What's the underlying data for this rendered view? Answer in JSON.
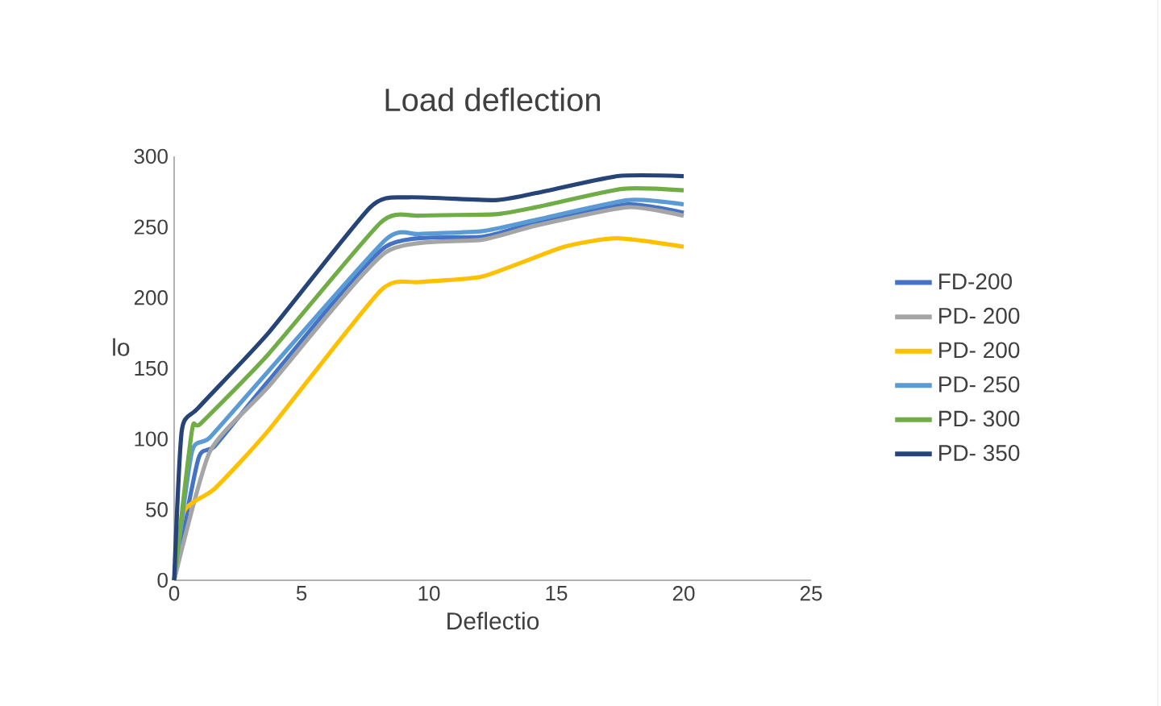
{
  "chart_data": {
    "type": "line",
    "title": "Load deflection",
    "xlabel": "Deflectio",
    "ylabel": "lo",
    "xlim": [
      0,
      25
    ],
    "xticks": [
      0,
      5,
      10,
      15,
      20,
      25
    ],
    "ylim": [
      0,
      300
    ],
    "yticks": [
      0,
      50,
      100,
      150,
      200,
      250,
      300
    ],
    "grid": false,
    "legend": "right",
    "marker": "none",
    "line_style": "solid",
    "series": [
      {
        "name": "FD-200",
        "color": "#4472c4",
        "x": [
          0,
          0.95,
          1.6,
          3.7,
          8.3,
          12.1,
          14.2,
          17.8,
          20
        ],
        "values": [
          0,
          86,
          95,
          141,
          236,
          243,
          253,
          266,
          260
        ]
      },
      {
        "name": "PD- 200",
        "color": "#a5a5a5",
        "x": [
          0,
          1.4,
          3.7,
          8.3,
          12.1,
          14.2,
          17.8,
          20
        ],
        "values": [
          0,
          91,
          137,
          232,
          241,
          251,
          264,
          258
        ]
      },
      {
        "name": "PD- 200",
        "color": "#ffc000",
        "x": [
          0,
          0.4,
          1.6,
          3.7,
          8.1,
          9.6,
          12.1,
          15.3,
          17.4,
          20
        ],
        "values": [
          0,
          49,
          65,
          106,
          205,
          211,
          215,
          236,
          242,
          236
        ]
      },
      {
        "name": "PD- 250",
        "color": "#5b9bd5",
        "x": [
          0,
          0.7,
          1.4,
          3.7,
          8.3,
          9.6,
          12.1,
          14.2,
          17.8,
          20
        ],
        "values": [
          0,
          91,
          101,
          148,
          241,
          245,
          247,
          255,
          269,
          266
        ]
      },
      {
        "name": "PD- 300",
        "color": "#70ad47",
        "x": [
          0,
          0.7,
          1.05,
          3.7,
          8.1,
          9.6,
          12.6,
          14.2,
          17.6,
          20
        ],
        "values": [
          0,
          106,
          111,
          160,
          253,
          258,
          259,
          264,
          277,
          276
        ]
      },
      {
        "name": "PD- 350",
        "color": "#264478",
        "x": [
          0,
          0.3,
          0.95,
          3.7,
          7.7,
          9.2,
          12.6,
          14.2,
          17.4,
          20
        ],
        "values": [
          0,
          106,
          122,
          175,
          264,
          271,
          269,
          274,
          286,
          286
        ]
      }
    ]
  }
}
